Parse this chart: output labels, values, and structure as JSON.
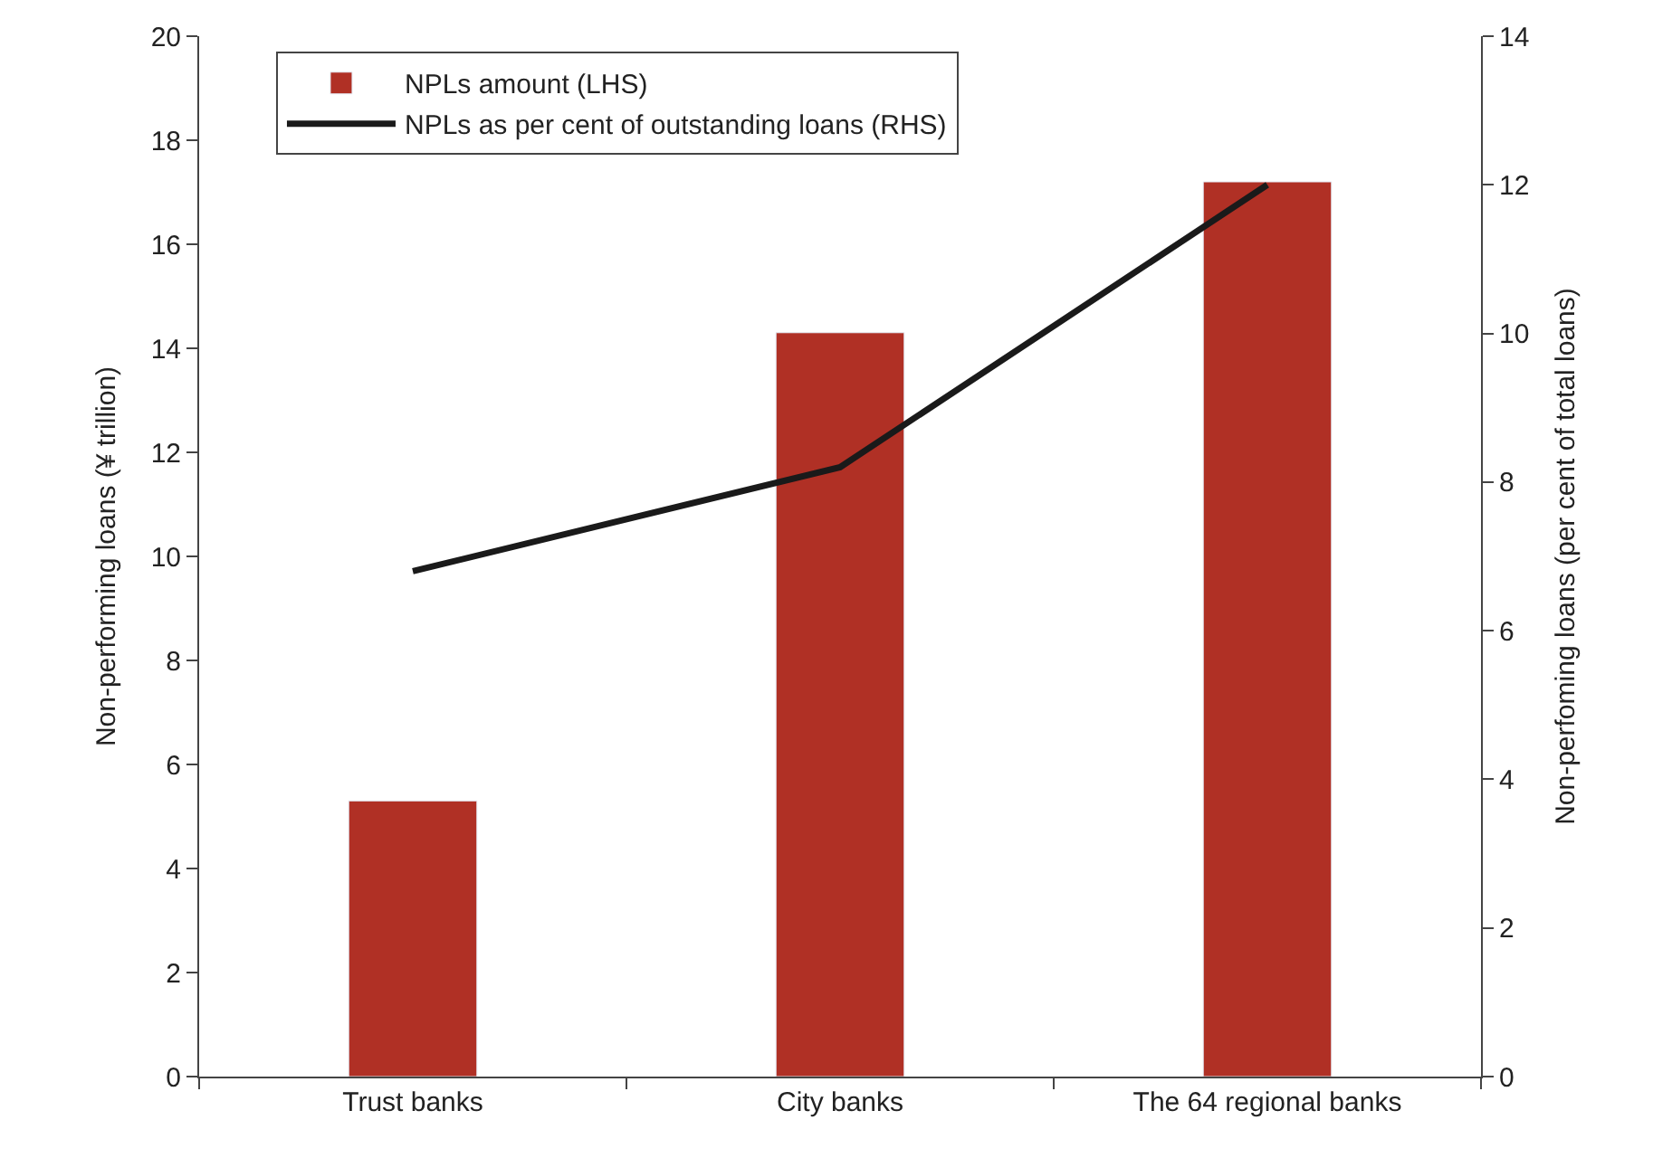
{
  "chart_data": {
    "type": "bar",
    "categories": [
      "Trust banks",
      "City banks",
      "The 64 regional banks"
    ],
    "ylabel": "Non-performing loans (¥ trillion)",
    "y2label": "Non-perfoming loans (per cent of total loans)",
    "series": [
      {
        "name": "NPLs amount (LHS)",
        "color": "#b03025",
        "values": [
          5.3,
          14.3,
          17.2
        ]
      },
      {
        "name": "NPLs as per cent of outstanding loans (RHS)",
        "type": "line",
        "axis": "y2",
        "color": "#1a1a1a",
        "values": [
          6.8,
          8.2,
          12.0
        ]
      }
    ],
    "ylim": [
      0,
      20
    ],
    "yticks": [
      0,
      2,
      4,
      6,
      8,
      10,
      12,
      14,
      16,
      18,
      20
    ],
    "y2lim": [
      0,
      14
    ],
    "y2ticks": [
      0,
      2,
      4,
      6,
      8,
      10,
      12,
      14
    ],
    "legend": "top left",
    "marker": "none",
    "line_style": "solid"
  }
}
